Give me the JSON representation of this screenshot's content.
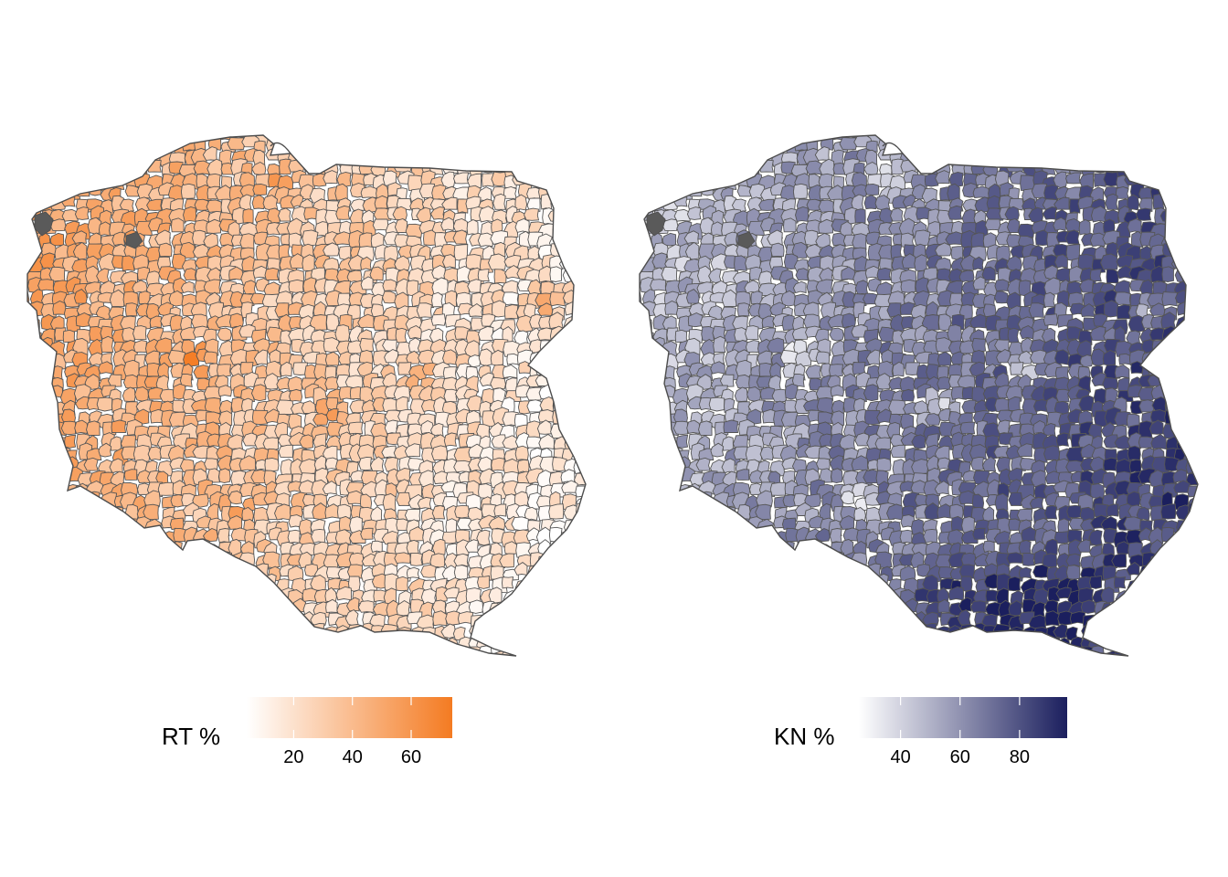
{
  "maps": [
    {
      "id": "rt",
      "legend_title": "RT %",
      "color_low": "#ffffff",
      "color_high": "#f47b22",
      "scale_min": 4,
      "scale_max": 74,
      "ticks": [
        20,
        40,
        60
      ],
      "tick_labels": [
        "20",
        "40",
        "60"
      ],
      "pattern": "west-high"
    },
    {
      "id": "kn",
      "legend_title": "KN %",
      "color_low": "#ffffff",
      "color_high": "#1b1f5e",
      "scale_min": 26,
      "scale_max": 96,
      "ticks": [
        40,
        60,
        80
      ],
      "tick_labels": [
        "40",
        "60",
        "80"
      ],
      "pattern": "east-high"
    }
  ],
  "boundary_color": "#555555",
  "water_color": "#5a5a5a"
}
